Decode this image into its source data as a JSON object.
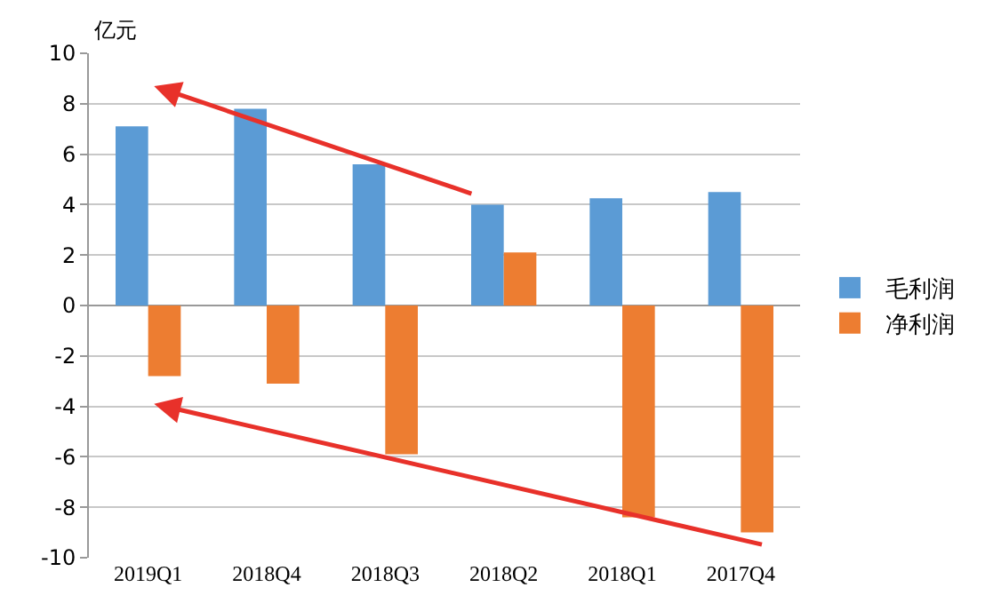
{
  "chart_data": {
    "type": "bar",
    "ylabel": "亿元",
    "categories": [
      "2019Q1",
      "2018Q4",
      "2018Q3",
      "2018Q2",
      "2018Q1",
      "2017Q4"
    ],
    "series": [
      {
        "name": "毛利润",
        "color": "#5b9bd5",
        "values": [
          7.1,
          7.8,
          5.6,
          4.0,
          4.25,
          4.5
        ]
      },
      {
        "name": "净利润",
        "color": "#ed7d31",
        "values": [
          -2.8,
          -3.1,
          -5.9,
          2.1,
          -8.4,
          -9.0
        ]
      }
    ],
    "ylim": [
      -10,
      10
    ],
    "yticks": [
      -10,
      -8,
      -6,
      -4,
      -2,
      0,
      2,
      4,
      6,
      8,
      10
    ],
    "grid": "y",
    "legend": "right"
  }
}
